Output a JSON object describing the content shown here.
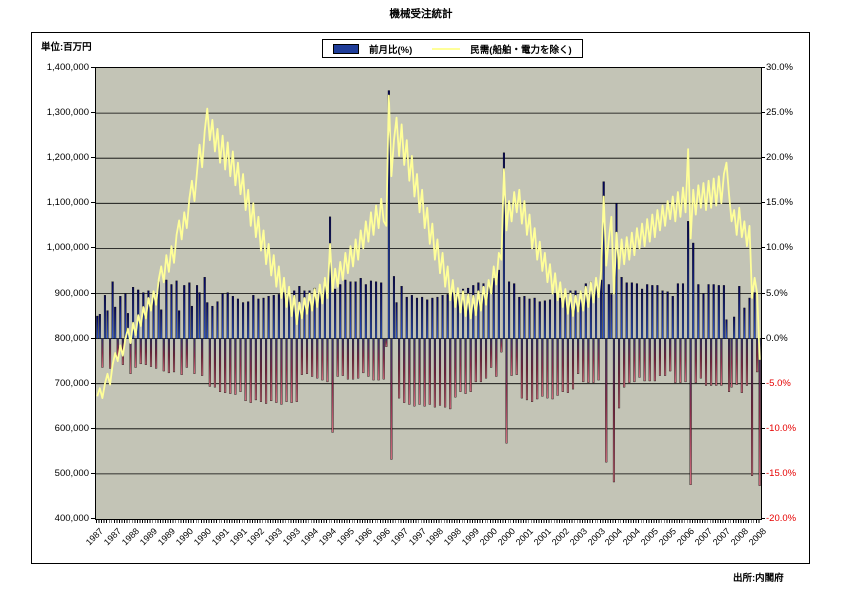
{
  "page": {
    "title": "機械受注統計",
    "unit_label": "単位:百万円",
    "source": "出所:内閣府"
  },
  "legend": {
    "bar_label": "前月比(%)",
    "line_label": "民需(船舶・電力を除く)"
  },
  "colors": {
    "plot_background": "#c3c4b6",
    "gridline": "#000000",
    "line_series": "#ffff99",
    "bar_positive_top": "#04045c",
    "bar_positive_bottom": "#3257c8",
    "bar_negative_top": "#32306e",
    "bar_negative_mid": "#8c2a4a",
    "bar_negative_tip": "#d06e7e",
    "negative_axis_text": "#e60000",
    "legend_swatch_blue": "#1f3d99"
  },
  "chart_data": {
    "type": "combo",
    "title": "機械受注統計",
    "x_start_month": "1987-04",
    "x_months": 260,
    "x_tick_every_months": 7,
    "x_tick_labels": [
      "1987",
      "1987",
      "1988",
      "1989",
      "1989",
      "1990",
      "1990",
      "1991",
      "1991",
      "1992",
      "1993",
      "1993",
      "1994",
      "1994",
      "1995",
      "1996",
      "1996",
      "1997",
      "1997",
      "1998",
      "1998",
      "1999",
      "2000",
      "2000",
      "2001",
      "2001",
      "2002",
      "2003",
      "2003",
      "2004",
      "2004",
      "2005",
      "2005",
      "2006",
      "2007",
      "2007",
      "2008",
      "2008"
    ],
    "left_axis": {
      "title": "百万円",
      "min": 400000,
      "max": 1400000,
      "step": 100000,
      "tick_labels": [
        "1,400,000",
        "1,300,000",
        "1,200,000",
        "1,100,000",
        "1,000,000",
        "900,000",
        "800,000",
        "700,000",
        "600,000",
        "500,000",
        "400,000"
      ]
    },
    "right_axis": {
      "title": "%",
      "min": -20,
      "max": 30,
      "step": 5,
      "tick_labels": [
        "30.0%",
        "25.0%",
        "20.0%",
        "15.0%",
        "10.0%",
        "5.0%",
        "0.0%",
        "-5.0%",
        "-10.0%",
        "-15.0%",
        "-20.0%"
      ]
    },
    "grid": true,
    "legend_position": "top-center",
    "series": [
      {
        "name": "前月比(%)",
        "type": "bar",
        "axis": "right",
        "unit": "%",
        "values": [
          2.5,
          2.7,
          -3.2,
          4.8,
          3.1,
          -3.3,
          6.3,
          3.5,
          -2.3,
          4.7,
          -2.9,
          5.0,
          2.8,
          -3.9,
          5.7,
          -3.2,
          5.4,
          -2.8,
          5.1,
          -2.9,
          5.3,
          -3.1,
          5.0,
          -3.3,
          6.3,
          3.2,
          -3.6,
          6.5,
          -3.8,
          6.0,
          -3.7,
          6.4,
          3.1,
          -4.0,
          5.9,
          -3.2,
          6.2,
          3.6,
          -3.9,
          5.9,
          5.1,
          -4.1,
          6.8,
          4.0,
          -5.3,
          3.6,
          -5.4,
          4.1,
          -5.9,
          5.0,
          -6.0,
          5.1,
          -6.1,
          4.7,
          -6.2,
          4.4,
          -5.9,
          4.0,
          -6.9,
          4.1,
          -7.1,
          4.8,
          -6.8,
          4.4,
          -7.0,
          4.5,
          -7.2,
          4.7,
          -6.9,
          4.8,
          -7.1,
          4.9,
          -7.3,
          5.1,
          -7.0,
          5.2,
          -7.1,
          5.3,
          -7.0,
          5.8,
          -4.0,
          5.3,
          -3.9,
          5.3,
          -4.2,
          5.6,
          -4.4,
          5.7,
          -4.6,
          6.5,
          -4.8,
          13.5,
          -10.4,
          5.5,
          -4.2,
          6.0,
          -4.1,
          6.5,
          -4.5,
          6.3,
          -4.5,
          6.3,
          -4.4,
          6.7,
          -3.8,
          6.0,
          -4.2,
          6.4,
          -4.6,
          6.3,
          -4.6,
          6.2,
          -4.5,
          -0.9,
          27.5,
          -13.4,
          6.9,
          4.0,
          -6.6,
          5.8,
          -7.1,
          4.6,
          -7.3,
          4.8,
          -7.5,
          4.5,
          -7.3,
          4.6,
          -7.5,
          4.3,
          -7.3,
          4.5,
          -7.6,
          4.6,
          -7.4,
          4.8,
          -7.6,
          4.9,
          -7.8,
          5.1,
          -6.5,
          4.8,
          -5.9,
          5.5,
          -6.1,
          5.6,
          -5.9,
          5.9,
          -4.8,
          6.2,
          -4.8,
          6.1,
          -4.4,
          6.3,
          -3.2,
          6.7,
          -4.2,
          7.6,
          -1.5,
          20.6,
          -11.6,
          6.3,
          -4.1,
          6.1,
          -4.0,
          4.6,
          -6.6,
          4.7,
          -6.8,
          4.4,
          -7.0,
          4.5,
          -6.7,
          4.1,
          -6.4,
          4.2,
          -6.6,
          4.3,
          -6.7,
          5.0,
          -6.3,
          4.5,
          -5.9,
          4.6,
          -6.0,
          5.3,
          -5.6,
          5.3,
          -3.9,
          5.2,
          -4.8,
          6.1,
          -4.9,
          6.3,
          -4.9,
          6.3,
          -4.6,
          6.5,
          17.4,
          -13.7,
          6.0,
          4.9,
          -15.9,
          15.0,
          -7.7,
          6.8,
          -5.4,
          6.2,
          -4.9,
          6.2,
          -4.8,
          6.1,
          -4.3,
          5.5,
          -4.7,
          6.0,
          -4.7,
          5.9,
          -4.7,
          5.9,
          -4.1,
          5.3,
          -4.1,
          5.2,
          -3.6,
          4.7,
          -4.9,
          6.1,
          -4.9,
          6.1,
          -4.8,
          13.0,
          -16.2,
          10.6,
          -4.9,
          6.0,
          -4.4,
          5.0,
          -5.2,
          6.0,
          -5.2,
          6.0,
          -5.2,
          5.9,
          -5.2,
          5.9,
          2.1,
          -5.9,
          -5.4,
          2.4,
          -5.1,
          5.8,
          -6.0,
          3.4,
          -5.2,
          4.5,
          -15.2,
          5.1,
          -3.7,
          -16.3
        ]
      },
      {
        "name": "民需(船舶・電力を除く)",
        "type": "line",
        "axis": "left",
        "unit": "百万円",
        "values": [
          672000,
          690000,
          668000,
          700000,
          722000,
          698000,
          742000,
          768000,
          750000,
          785000,
          762000,
          800000,
          822000,
          790000,
          835000,
          808000,
          852000,
          828000,
          870000,
          845000,
          890000,
          862000,
          905000,
          875000,
          930000,
          960000,
          925000,
          985000,
          948000,
          1005000,
          968000,
          1030000,
          1062000,
          1020000,
          1080000,
          1045000,
          1110000,
          1150000,
          1105000,
          1170000,
          1230000,
          1180000,
          1260000,
          1310000,
          1240000,
          1285000,
          1215000,
          1265000,
          1190000,
          1250000,
          1175000,
          1235000,
          1160000,
          1215000,
          1140000,
          1190000,
          1120000,
          1165000,
          1085000,
          1130000,
          1050000,
          1100000,
          1025000,
          1070000,
          995000,
          1040000,
          965000,
          1010000,
          940000,
          985000,
          915000,
          960000,
          890000,
          935000,
          870000,
          915000,
          850000,
          895000,
          832000,
          880000,
          845000,
          890000,
          855000,
          900000,
          862000,
          910000,
          870000,
          920000,
          878000,
          935000,
          890000,
          1010000,
          905000,
          955000,
          915000,
          970000,
          930000,
          990000,
          945000,
          1005000,
          960000,
          1020000,
          975000,
          1040000,
          1000000,
          1060000,
          1015000,
          1080000,
          1030000,
          1095000,
          1045000,
          1110000,
          1060000,
          1050000,
          1339000,
          1160000,
          1240000,
          1290000,
          1205000,
          1275000,
          1185000,
          1240000,
          1150000,
          1205000,
          1115000,
          1165000,
          1080000,
          1130000,
          1045000,
          1090000,
          1010000,
          1055000,
          975000,
          1020000,
          945000,
          990000,
          915000,
          960000,
          885000,
          930000,
          870000,
          912000,
          858000,
          905000,
          850000,
          898000,
          845000,
          895000,
          852000,
          905000,
          862000,
          915000,
          875000,
          930000,
          900000,
          960000,
          920000,
          990000,
          975000,
          1176000,
          1040000,
          1105000,
          1060000,
          1125000,
          1080000,
          1130000,
          1055000,
          1105000,
          1030000,
          1075000,
          1000000,
          1045000,
          975000,
          1015000,
          950000,
          990000,
          925000,
          965000,
          900000,
          945000,
          885000,
          925000,
          870000,
          910000,
          855000,
          900000,
          850000,
          895000,
          860000,
          905000,
          862000,
          915000,
          870000,
          925000,
          880000,
          935000,
          892000,
          950000,
          1115000,
          962000,
          1020000,
          1070000,
          900000,
          1035000,
          955000,
          1020000,
          965000,
          1025000,
          975000,
          1035000,
          985000,
          1045000,
          1000000,
          1055000,
          1005000,
          1065000,
          1015000,
          1075000,
          1025000,
          1085000,
          1040000,
          1095000,
          1050000,
          1105000,
          1065000,
          1115000,
          1060000,
          1125000,
          1070000,
          1135000,
          1080000,
          1220000,
          1022000,
          1130000,
          1075000,
          1140000,
          1090000,
          1145000,
          1085000,
          1150000,
          1090000,
          1155000,
          1095000,
          1160000,
          1100000,
          1165000,
          1190000,
          1120000,
          1060000,
          1085000,
          1030000,
          1090000,
          1025000,
          1060000,
          1005000,
          1050000,
          890000,
          935000,
          900000,
          753000
        ]
      }
    ]
  }
}
